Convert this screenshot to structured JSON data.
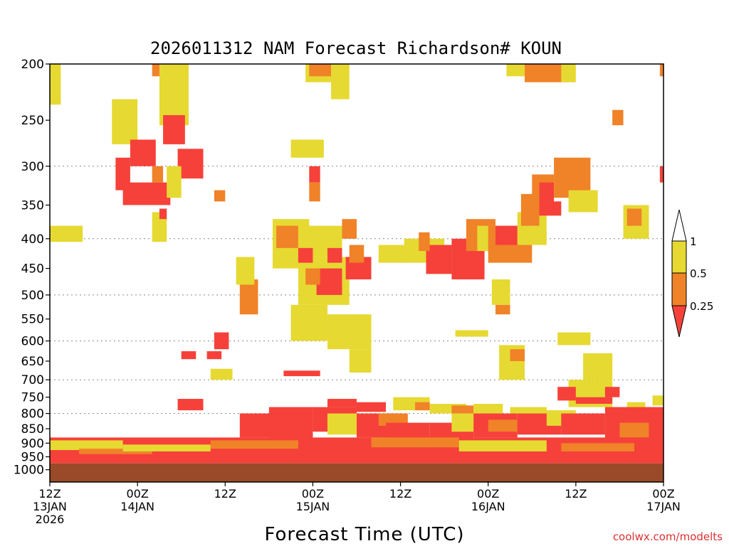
{
  "chart_data": {
    "type": "heatmap",
    "title": "2026011312 NAM Forecast Richardson# KOUN",
    "xlabel": "Forecast Time (UTC)",
    "ylabel": "",
    "watermark": "coolwx.com/modelts",
    "y_scale": "log",
    "ylim": [
      200,
      1050
    ],
    "y_ticks": [
      200,
      250,
      300,
      350,
      400,
      450,
      500,
      550,
      600,
      650,
      700,
      750,
      800,
      850,
      900,
      950,
      1000
    ],
    "y_gridlines": [
      300,
      400,
      500,
      600,
      700,
      800,
      900,
      1000
    ],
    "xlim": [
      0,
      84
    ],
    "x_ticks": [
      {
        "hour": 0,
        "line1": "12Z",
        "line2": "13JAN",
        "line3": "2026"
      },
      {
        "hour": 12,
        "line1": "00Z",
        "line2": "14JAN",
        "line3": ""
      },
      {
        "hour": 24,
        "line1": "12Z",
        "line2": "",
        "line3": ""
      },
      {
        "hour": 36,
        "line1": "00Z",
        "line2": "15JAN",
        "line3": ""
      },
      {
        "hour": 48,
        "line1": "12Z",
        "line2": "",
        "line3": ""
      },
      {
        "hour": 60,
        "line1": "00Z",
        "line2": "16JAN",
        "line3": ""
      },
      {
        "hour": 72,
        "line1": "12Z",
        "line2": "",
        "line3": ""
      },
      {
        "hour": 84,
        "line1": "00Z",
        "line2": "17JAN",
        "line3": ""
      }
    ],
    "colorbar": {
      "labels": [
        "1",
        "0.5",
        "0.25"
      ],
      "bins": [
        {
          "range": "0.5-1",
          "color": "#e6d932"
        },
        {
          "range": "0.25-0.5",
          "color": "#f08228"
        },
        {
          "range": "<0.25",
          "color": "#f5413a"
        }
      ],
      "over_color": "#ffffff",
      "under_color": "#f5413a"
    },
    "ground_color": "#9a4a28",
    "colors": {
      "yellow": "#e6d932",
      "orange": "#f08228",
      "red": "#f5413a"
    },
    "regions": [
      {
        "t0": 0,
        "t1": 1.5,
        "p0": 200,
        "p1": 235,
        "c": "yellow"
      },
      {
        "t0": 0,
        "t1": 4.5,
        "p0": 380,
        "p1": 405,
        "c": "yellow"
      },
      {
        "t0": 8.5,
        "t1": 12,
        "p0": 230,
        "p1": 275,
        "c": "yellow"
      },
      {
        "t0": 9,
        "t1": 11,
        "p0": 290,
        "p1": 330,
        "c": "red"
      },
      {
        "t0": 10,
        "t1": 16.5,
        "p0": 320,
        "p1": 350,
        "c": "red"
      },
      {
        "t0": 11,
        "t1": 14.5,
        "p0": 270,
        "p1": 300,
        "c": "red"
      },
      {
        "t0": 14,
        "t1": 15.5,
        "p0": 300,
        "p1": 320,
        "c": "orange"
      },
      {
        "t0": 15,
        "t1": 19,
        "p0": 200,
        "p1": 255,
        "c": "yellow"
      },
      {
        "t0": 15.5,
        "t1": 18.5,
        "p0": 245,
        "p1": 275,
        "c": "red"
      },
      {
        "t0": 17.5,
        "t1": 21,
        "p0": 280,
        "p1": 315,
        "c": "red"
      },
      {
        "t0": 16,
        "t1": 18,
        "p0": 300,
        "p1": 340,
        "c": "yellow"
      },
      {
        "t0": 14,
        "t1": 16,
        "p0": 360,
        "p1": 405,
        "c": "yellow"
      },
      {
        "t0": 15,
        "t1": 16,
        "p0": 355,
        "p1": 370,
        "c": "red"
      },
      {
        "t0": 14,
        "t1": 15,
        "p0": 200,
        "p1": 210,
        "c": "orange"
      },
      {
        "t0": 22.5,
        "t1": 24,
        "p0": 330,
        "p1": 345,
        "c": "orange"
      },
      {
        "t0": 30.5,
        "t1": 35.5,
        "p0": 370,
        "p1": 450,
        "c": "yellow"
      },
      {
        "t0": 31,
        "t1": 34,
        "p0": 380,
        "p1": 415,
        "c": "orange"
      },
      {
        "t0": 26,
        "t1": 28.5,
        "p0": 470,
        "p1": 540,
        "c": "orange"
      },
      {
        "t0": 25.5,
        "t1": 28,
        "p0": 430,
        "p1": 480,
        "c": "yellow"
      },
      {
        "t0": 33,
        "t1": 37.5,
        "p0": 270,
        "p1": 290,
        "c": "yellow"
      },
      {
        "t0": 35,
        "t1": 39,
        "p0": 200,
        "p1": 215,
        "c": "yellow"
      },
      {
        "t0": 35.5,
        "t1": 38.5,
        "p0": 200,
        "p1": 210,
        "c": "orange"
      },
      {
        "t0": 38.5,
        "t1": 41,
        "p0": 200,
        "p1": 230,
        "c": "yellow"
      },
      {
        "t0": 35.5,
        "t1": 37,
        "p0": 300,
        "p1": 320,
        "c": "red"
      },
      {
        "t0": 35.5,
        "t1": 37,
        "p0": 320,
        "p1": 345,
        "c": "orange"
      },
      {
        "t0": 34,
        "t1": 40,
        "p0": 380,
        "p1": 430,
        "c": "yellow"
      },
      {
        "t0": 34,
        "t1": 41,
        "p0": 430,
        "p1": 520,
        "c": "yellow"
      },
      {
        "t0": 34,
        "t1": 36,
        "p0": 415,
        "p1": 440,
        "c": "red"
      },
      {
        "t0": 36.5,
        "t1": 40,
        "p0": 450,
        "p1": 500,
        "c": "red"
      },
      {
        "t0": 35,
        "t1": 37,
        "p0": 450,
        "p1": 480,
        "c": "orange"
      },
      {
        "t0": 38,
        "t1": 40,
        "p0": 415,
        "p1": 440,
        "c": "red"
      },
      {
        "t0": 40.5,
        "t1": 44,
        "p0": 430,
        "p1": 470,
        "c": "red"
      },
      {
        "t0": 41,
        "t1": 43,
        "p0": 410,
        "p1": 440,
        "c": "orange"
      },
      {
        "t0": 40,
        "t1": 42,
        "p0": 370,
        "p1": 400,
        "c": "orange"
      },
      {
        "t0": 34,
        "t1": 37,
        "p0": 550,
        "p1": 580,
        "c": "orange"
      },
      {
        "t0": 33,
        "t1": 38,
        "p0": 520,
        "p1": 600,
        "c": "yellow"
      },
      {
        "t0": 32,
        "t1": 37,
        "p0": 675,
        "p1": 690,
        "c": "red"
      },
      {
        "t0": 38,
        "t1": 44,
        "p0": 540,
        "p1": 620,
        "c": "yellow"
      },
      {
        "t0": 41,
        "t1": 44,
        "p0": 620,
        "p1": 680,
        "c": "yellow"
      },
      {
        "t0": 22.5,
        "t1": 24.5,
        "p0": 580,
        "p1": 620,
        "c": "red"
      },
      {
        "t0": 18,
        "t1": 20,
        "p0": 625,
        "p1": 645,
        "c": "red"
      },
      {
        "t0": 21.5,
        "t1": 23.5,
        "p0": 625,
        "p1": 645,
        "c": "red"
      },
      {
        "t0": 22,
        "t1": 25,
        "p0": 670,
        "p1": 700,
        "c": "yellow"
      },
      {
        "t0": 17.5,
        "t1": 21,
        "p0": 755,
        "p1": 790,
        "c": "red"
      },
      {
        "t0": 45,
        "t1": 49,
        "p0": 410,
        "p1": 440,
        "c": "yellow"
      },
      {
        "t0": 48.5,
        "t1": 54,
        "p0": 400,
        "p1": 440,
        "c": "yellow"
      },
      {
        "t0": 51.5,
        "t1": 55,
        "p0": 410,
        "p1": 460,
        "c": "red"
      },
      {
        "t0": 50.5,
        "t1": 52,
        "p0": 390,
        "p1": 420,
        "c": "orange"
      },
      {
        "t0": 55,
        "t1": 59.5,
        "p0": 400,
        "p1": 470,
        "c": "red"
      },
      {
        "t0": 57,
        "t1": 61,
        "p0": 370,
        "p1": 420,
        "c": "orange"
      },
      {
        "t0": 58.5,
        "t1": 62,
        "p0": 380,
        "p1": 420,
        "c": "yellow"
      },
      {
        "t0": 60,
        "t1": 66,
        "p0": 380,
        "p1": 440,
        "c": "orange"
      },
      {
        "t0": 61,
        "t1": 64,
        "p0": 380,
        "p1": 410,
        "c": "red"
      },
      {
        "t0": 64,
        "t1": 68,
        "p0": 360,
        "p1": 410,
        "c": "yellow"
      },
      {
        "t0": 64.5,
        "t1": 67,
        "p0": 335,
        "p1": 380,
        "c": "orange"
      },
      {
        "t0": 66,
        "t1": 69,
        "p0": 310,
        "p1": 360,
        "c": "orange"
      },
      {
        "t0": 67,
        "t1": 69,
        "p0": 320,
        "p1": 345,
        "c": "red"
      },
      {
        "t0": 67,
        "t1": 70,
        "p0": 345,
        "p1": 365,
        "c": "red"
      },
      {
        "t0": 69,
        "t1": 74,
        "p0": 290,
        "p1": 340,
        "c": "orange"
      },
      {
        "t0": 71,
        "t1": 75,
        "p0": 330,
        "p1": 360,
        "c": "yellow"
      },
      {
        "t0": 65,
        "t1": 71,
        "p0": 200,
        "p1": 215,
        "c": "orange"
      },
      {
        "t0": 62.5,
        "t1": 65,
        "p0": 200,
        "p1": 210,
        "c": "yellow"
      },
      {
        "t0": 70,
        "t1": 72,
        "p0": 200,
        "p1": 215,
        "c": "yellow"
      },
      {
        "t0": 77,
        "t1": 78.5,
        "p0": 240,
        "p1": 255,
        "c": "orange"
      },
      {
        "t0": 78.5,
        "t1": 82,
        "p0": 350,
        "p1": 400,
        "c": "yellow"
      },
      {
        "t0": 79,
        "t1": 81,
        "p0": 355,
        "p1": 380,
        "c": "orange"
      },
      {
        "t0": 83.5,
        "t1": 84,
        "p0": 300,
        "p1": 320,
        "c": "red"
      },
      {
        "t0": 83.5,
        "t1": 84,
        "p0": 200,
        "p1": 210,
        "c": "orange"
      },
      {
        "t0": 60.5,
        "t1": 63,
        "p0": 470,
        "p1": 520,
        "c": "yellow"
      },
      {
        "t0": 61,
        "t1": 63,
        "p0": 520,
        "p1": 540,
        "c": "orange"
      },
      {
        "t0": 55.5,
        "t1": 60,
        "p0": 575,
        "p1": 590,
        "c": "yellow"
      },
      {
        "t0": 61.5,
        "t1": 65,
        "p0": 610,
        "p1": 700,
        "c": "yellow"
      },
      {
        "t0": 63,
        "t1": 65,
        "p0": 620,
        "p1": 650,
        "c": "orange"
      },
      {
        "t0": 69.5,
        "t1": 74,
        "p0": 580,
        "p1": 610,
        "c": "yellow"
      },
      {
        "t0": 73,
        "t1": 77,
        "p0": 630,
        "p1": 700,
        "c": "yellow"
      },
      {
        "t0": 71,
        "t1": 77,
        "p0": 700,
        "p1": 780,
        "c": "yellow"
      },
      {
        "t0": 69.5,
        "t1": 72,
        "p0": 720,
        "p1": 760,
        "c": "red"
      },
      {
        "t0": 72,
        "t1": 77,
        "p0": 750,
        "p1": 770,
        "c": "red"
      },
      {
        "t0": 76,
        "t1": 78,
        "p0": 720,
        "p1": 750,
        "c": "red"
      },
      {
        "t0": 79,
        "t1": 81.5,
        "p0": 765,
        "p1": 800,
        "c": "yellow"
      },
      {
        "t0": 82.5,
        "t1": 84,
        "p0": 745,
        "p1": 775,
        "c": "yellow"
      },
      {
        "t0": 38,
        "t1": 42,
        "p0": 755,
        "p1": 780,
        "c": "red"
      },
      {
        "t0": 42,
        "t1": 46,
        "p0": 765,
        "p1": 795,
        "c": "red"
      },
      {
        "t0": 47,
        "t1": 52,
        "p0": 750,
        "p1": 790,
        "c": "yellow"
      },
      {
        "t0": 50,
        "t1": 52,
        "p0": 765,
        "p1": 790,
        "c": "orange"
      },
      {
        "t0": 52,
        "t1": 57,
        "p0": 770,
        "p1": 800,
        "c": "yellow"
      },
      {
        "t0": 55,
        "t1": 58,
        "p0": 775,
        "p1": 800,
        "c": "orange"
      },
      {
        "t0": 58,
        "t1": 62,
        "p0": 770,
        "p1": 800,
        "c": "yellow"
      },
      {
        "t0": 63,
        "t1": 68,
        "p0": 780,
        "p1": 800,
        "c": "yellow"
      },
      {
        "t0": 26,
        "t1": 32,
        "p0": 800,
        "p1": 880,
        "c": "red"
      },
      {
        "t0": 30,
        "t1": 36,
        "p0": 780,
        "p1": 900,
        "c": "red"
      },
      {
        "t0": 36,
        "t1": 42,
        "p0": 780,
        "p1": 860,
        "c": "red"
      },
      {
        "t0": 38,
        "t1": 46,
        "p0": 800,
        "p1": 870,
        "c": "yellow"
      },
      {
        "t0": 42,
        "t1": 48,
        "p0": 800,
        "p1": 880,
        "c": "red"
      },
      {
        "t0": 45,
        "t1": 49,
        "p0": 800,
        "p1": 840,
        "c": "orange"
      },
      {
        "t0": 46,
        "t1": 52,
        "p0": 830,
        "p1": 900,
        "c": "red"
      },
      {
        "t0": 52,
        "t1": 58,
        "p0": 830,
        "p1": 890,
        "c": "red"
      },
      {
        "t0": 55,
        "t1": 60,
        "p0": 800,
        "p1": 860,
        "c": "yellow"
      },
      {
        "t0": 58,
        "t1": 64,
        "p0": 800,
        "p1": 880,
        "c": "red"
      },
      {
        "t0": 60,
        "t1": 66,
        "p0": 820,
        "p1": 860,
        "c": "orange"
      },
      {
        "t0": 64,
        "t1": 70,
        "p0": 800,
        "p1": 870,
        "c": "red"
      },
      {
        "t0": 68,
        "t1": 72,
        "p0": 790,
        "p1": 840,
        "c": "yellow"
      },
      {
        "t0": 70,
        "t1": 76,
        "p0": 800,
        "p1": 870,
        "c": "red"
      },
      {
        "t0": 76,
        "t1": 84,
        "p0": 780,
        "p1": 900,
        "c": "red"
      },
      {
        "t0": 78,
        "t1": 82,
        "p0": 830,
        "p1": 880,
        "c": "orange"
      },
      {
        "t0": 0,
        "t1": 84,
        "p0": 880,
        "p1": 960,
        "c": "red"
      },
      {
        "t0": 0,
        "t1": 10,
        "p0": 890,
        "p1": 925,
        "c": "yellow"
      },
      {
        "t0": 4,
        "t1": 14,
        "p0": 920,
        "p1": 950,
        "c": "orange"
      },
      {
        "t0": 10,
        "t1": 22,
        "p0": 905,
        "p1": 930,
        "c": "yellow"
      },
      {
        "t0": 22,
        "t1": 34,
        "p0": 890,
        "p1": 920,
        "c": "orange"
      },
      {
        "t0": 44,
        "t1": 56,
        "p0": 880,
        "p1": 915,
        "c": "orange"
      },
      {
        "t0": 56,
        "t1": 68,
        "p0": 890,
        "p1": 930,
        "c": "yellow"
      },
      {
        "t0": 70,
        "t1": 80,
        "p0": 900,
        "p1": 930,
        "c": "orange"
      },
      {
        "t0": 0,
        "t1": 84,
        "p0": 940,
        "p1": 975,
        "c": "red"
      }
    ]
  }
}
